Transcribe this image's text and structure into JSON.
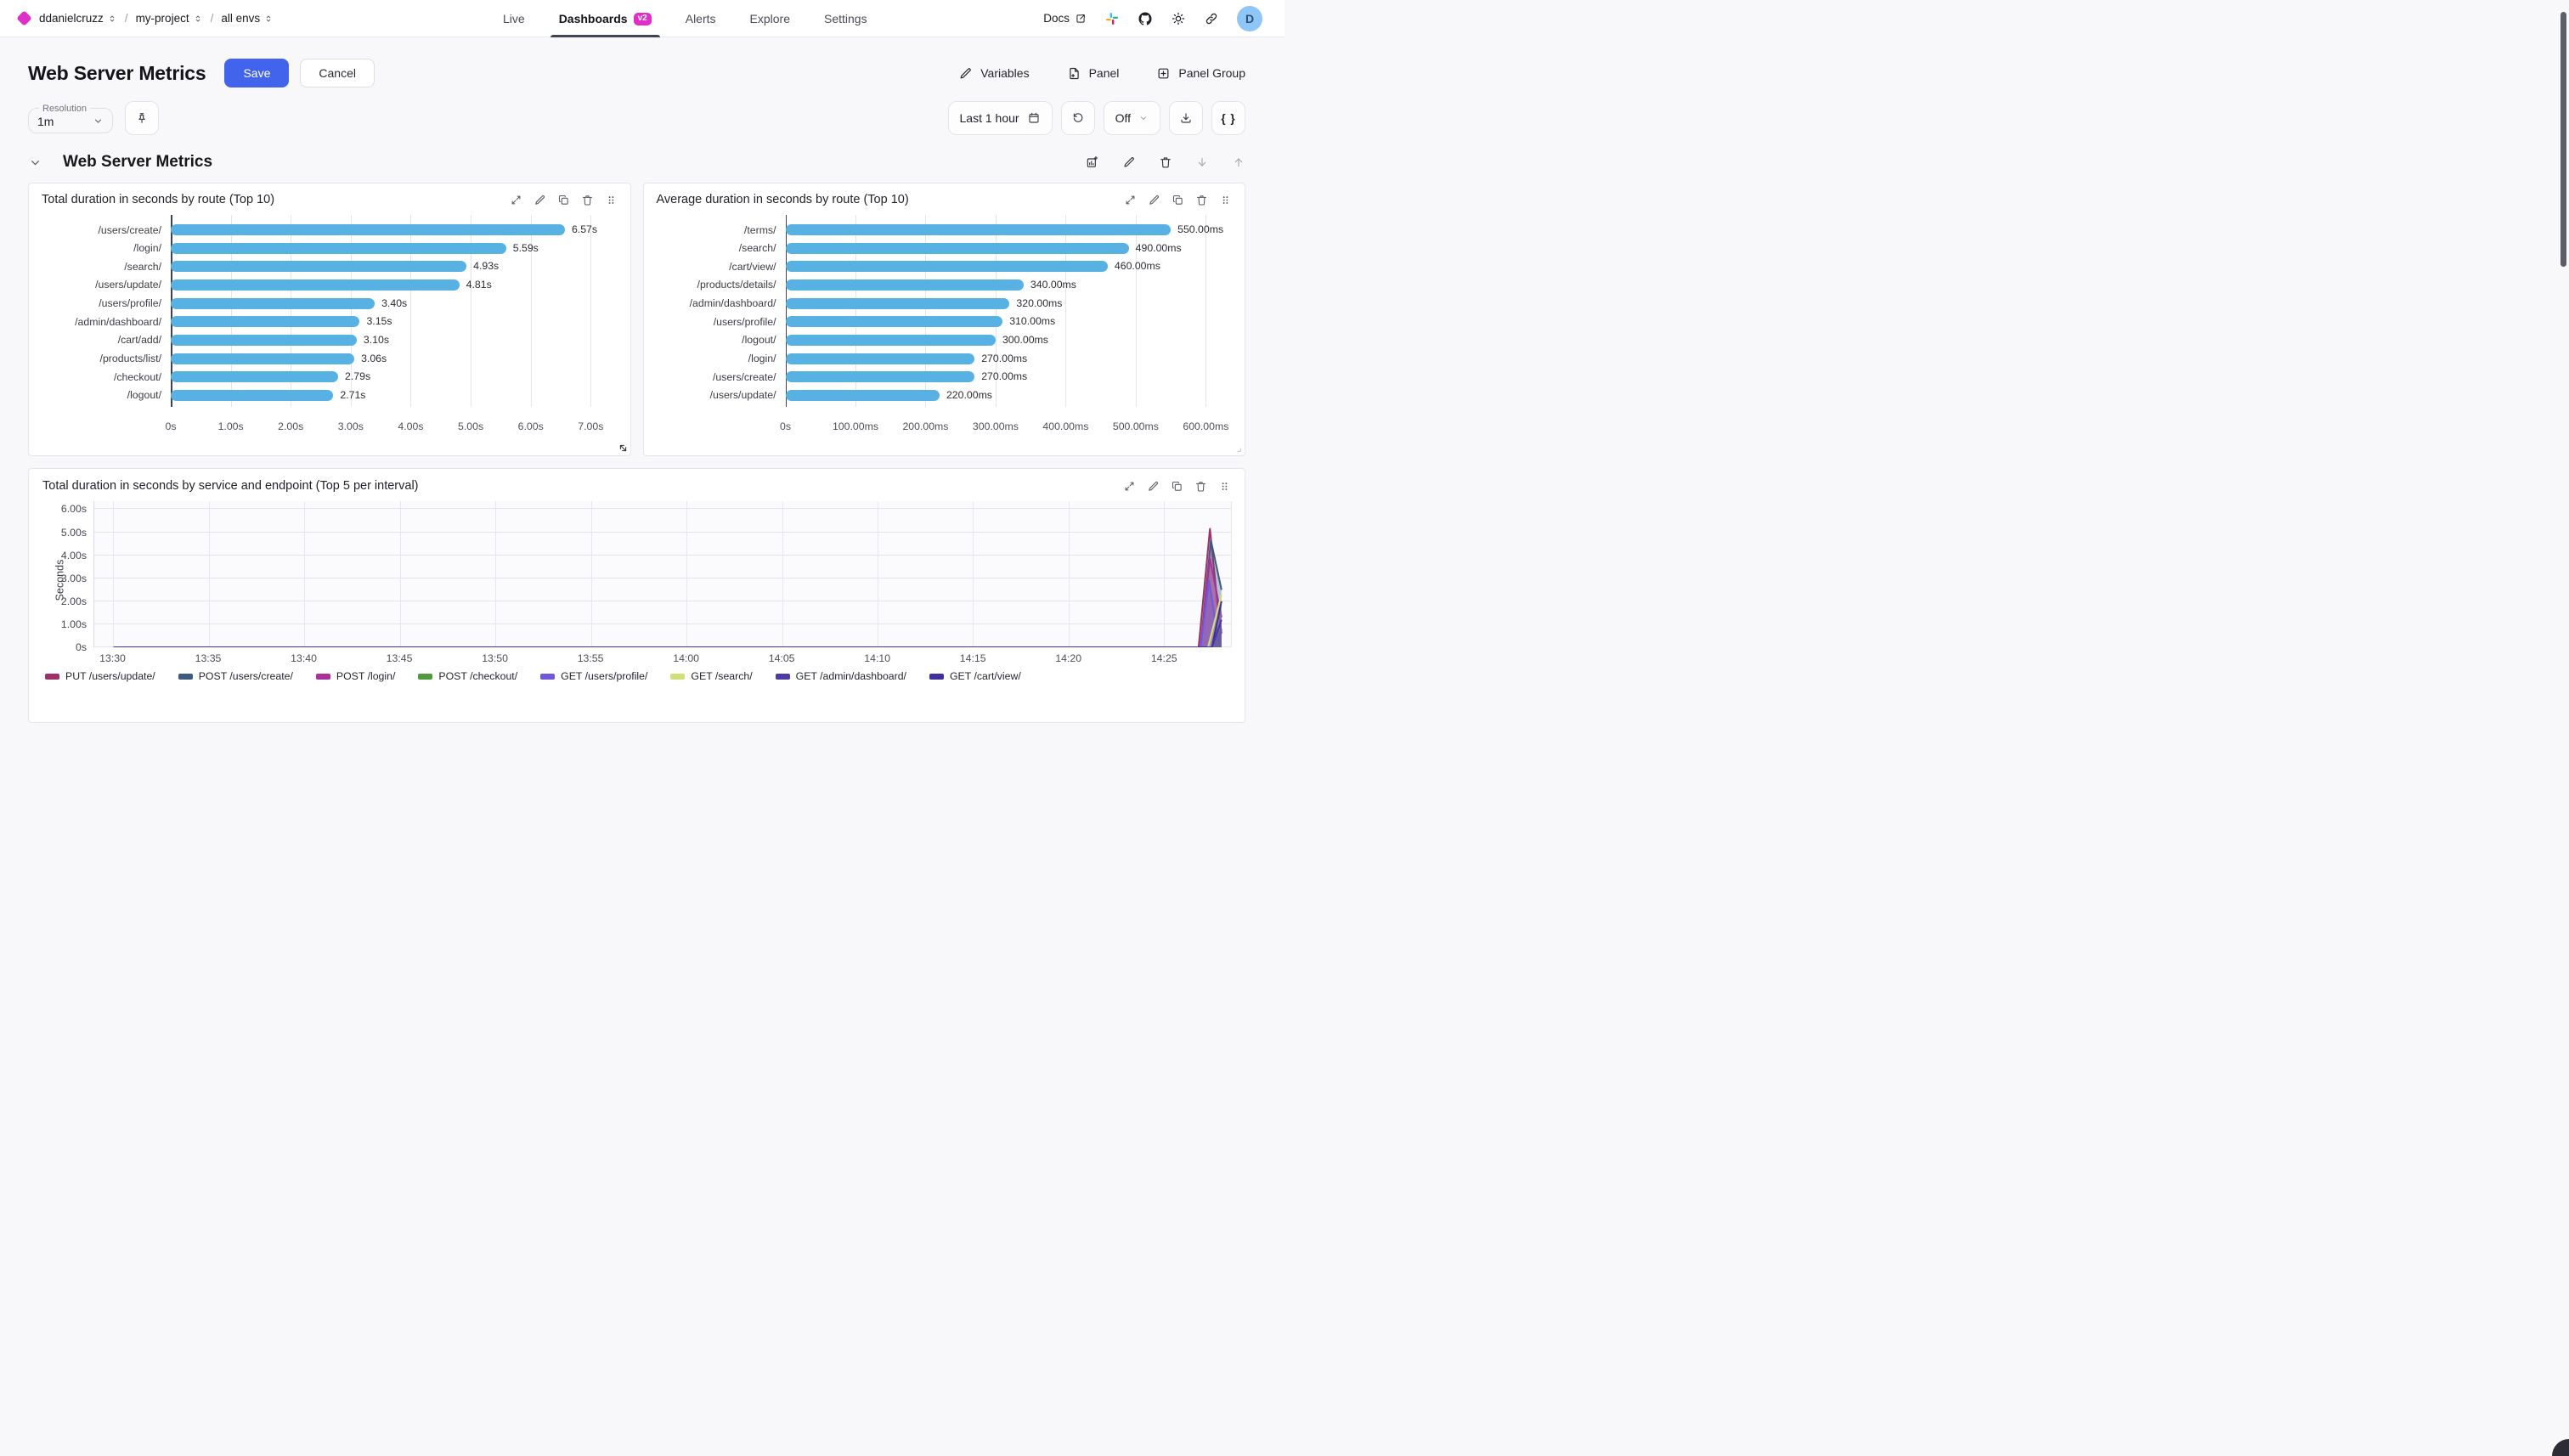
{
  "nav": {
    "breadcrumb": {
      "account": "ddanielcruzz",
      "separator": "/",
      "project": "my-project",
      "env": "all envs"
    },
    "tabs": [
      {
        "label": "Live",
        "active": false
      },
      {
        "label": "Dashboards",
        "active": true,
        "badge": "v2"
      },
      {
        "label": "Alerts",
        "active": false
      },
      {
        "label": "Explore",
        "active": false
      },
      {
        "label": "Settings",
        "active": false
      }
    ],
    "docs_label": "Docs",
    "avatar_initial": "D"
  },
  "header": {
    "title": "Web Server Metrics",
    "save_label": "Save",
    "cancel_label": "Cancel",
    "actions": [
      {
        "label": "Variables"
      },
      {
        "label": "Panel"
      },
      {
        "label": "Panel Group"
      }
    ]
  },
  "toolbar": {
    "resolution_label": "Resolution",
    "resolution_value": "1m",
    "time_range": "Last 1 hour",
    "refresh_value": "Off",
    "braces_label": "{ }"
  },
  "section": {
    "title": "Web Server Metrics"
  },
  "colors": {
    "accent_blue": "#4263eb",
    "brand_magenta": "#e02ec8",
    "bar_blue": "#57b2e3",
    "tab_underline": "#3d4557",
    "avatar_bg": "#8ec6f7"
  },
  "icons": [
    "diamond-logo",
    "chevron-updown",
    "external-link",
    "slack",
    "github",
    "sun",
    "link",
    "avatar",
    "pencil",
    "file-plus",
    "plus-square",
    "pin",
    "calendar",
    "refresh-ccw",
    "chevron-down",
    "download",
    "braces",
    "chart-plus",
    "trash",
    "arrow-down",
    "arrow-up",
    "expand",
    "copy",
    "grip-dots",
    "resize-handle",
    "corner-bracket"
  ],
  "chart_data": [
    {
      "type": "bar",
      "orientation": "horizontal",
      "title": "Total duration in seconds by route (Top 10)",
      "categories": [
        "/users/create/",
        "/login/",
        "/search/",
        "/users/update/",
        "/users/profile/",
        "/admin/dashboard/",
        "/cart/add/",
        "/products/list/",
        "/checkout/",
        "/logout/"
      ],
      "values": [
        6.57,
        5.59,
        4.93,
        4.81,
        3.4,
        3.15,
        3.1,
        3.06,
        2.79,
        2.71
      ],
      "value_labels": [
        "6.57s",
        "5.59s",
        "4.93s",
        "4.81s",
        "3.40s",
        "3.15s",
        "3.10s",
        "3.06s",
        "2.79s",
        "2.71s"
      ],
      "xticks": [
        "0s",
        "1.00s",
        "2.00s",
        "3.00s",
        "4.00s",
        "5.00s",
        "6.00s",
        "7.00s"
      ],
      "xtick_values": [
        0,
        1,
        2,
        3,
        4,
        5,
        6,
        7
      ],
      "axis_max": 7.3,
      "bar_color": "#57b2e3",
      "unit": "s"
    },
    {
      "type": "bar",
      "orientation": "horizontal",
      "title": "Average duration in seconds by route (Top 10)",
      "categories": [
        "/terms/",
        "/search/",
        "/cart/view/",
        "/products/details/",
        "/admin/dashboard/",
        "/users/profile/",
        "/logout/",
        "/login/",
        "/users/create/",
        "/users/update/"
      ],
      "values": [
        550,
        490,
        460,
        340,
        320,
        310,
        300,
        270,
        270,
        220
      ],
      "value_labels": [
        "550.00ms",
        "490.00ms",
        "460.00ms",
        "340.00ms",
        "320.00ms",
        "310.00ms",
        "300.00ms",
        "270.00ms",
        "270.00ms",
        "220.00ms"
      ],
      "xticks": [
        "0s",
        "100.00ms",
        "200.00ms",
        "300.00ms",
        "400.00ms",
        "500.00ms",
        "600.00ms"
      ],
      "xtick_values": [
        0,
        100,
        200,
        300,
        400,
        500,
        600
      ],
      "axis_max": 625,
      "bar_color": "#57b2e3",
      "unit": "ms"
    },
    {
      "type": "area",
      "title": "Total duration in seconds by service and endpoint (Top 5 per interval)",
      "ylabel": "Seconds",
      "yticks": [
        "0s",
        "1.00s",
        "2.00s",
        "3.00s",
        "4.00s",
        "5.00s",
        "6.00s"
      ],
      "ytick_values": [
        0,
        1,
        2,
        3,
        4,
        5,
        6
      ],
      "ymax": 6.35,
      "xticks": [
        "13:30",
        "13:35",
        "13:40",
        "13:45",
        "13:50",
        "13:55",
        "14:00",
        "14:05",
        "14:10",
        "14:15",
        "14:20",
        "14:25"
      ],
      "xtick_values": [
        0,
        5,
        10,
        15,
        20,
        25,
        30,
        35,
        40,
        45,
        50,
        55
      ],
      "x_offset": 1,
      "x_span": 59.5,
      "grid": true,
      "legend_position": "bottom",
      "series": [
        {
          "name": "PUT /users/update/",
          "color": "#9e3266",
          "points": [
            [
              0,
              0
            ],
            [
              56.8,
              0
            ],
            [
              57.4,
              5.15
            ],
            [
              57.8,
              1.9
            ],
            [
              58,
              0.6
            ]
          ]
        },
        {
          "name": "POST /users/create/",
          "color": "#3d5a80",
          "points": [
            [
              0,
              0
            ],
            [
              56.9,
              0
            ],
            [
              57.45,
              4.65
            ],
            [
              58,
              2.5
            ]
          ]
        },
        {
          "name": "POST /login/",
          "color": "#a83299",
          "points": [
            [
              0,
              0
            ],
            [
              56.9,
              0
            ],
            [
              57.4,
              3.85
            ],
            [
              58,
              1.3
            ]
          ]
        },
        {
          "name": "POST /checkout/",
          "color": "#4e9a3c",
          "points": [
            [
              0,
              0
            ],
            [
              58,
              0
            ]
          ]
        },
        {
          "name": "GET /users/profile/",
          "color": "#7257d9",
          "points": [
            [
              0,
              0
            ],
            [
              56.9,
              0
            ],
            [
              57.35,
              2.9
            ],
            [
              57.85,
              0.25
            ],
            [
              58,
              0.8
            ]
          ]
        },
        {
          "name": "GET /search/",
          "color": "#cfe077",
          "points": [
            [
              0,
              0
            ],
            [
              57.3,
              0
            ],
            [
              58,
              2.3
            ]
          ]
        },
        {
          "name": "GET /admin/dashboard/",
          "color": "#4d3ca6",
          "points": [
            [
              0,
              0
            ],
            [
              57.5,
              0
            ],
            [
              58,
              1.2
            ]
          ]
        },
        {
          "name": "GET /cart/view/",
          "color": "#40309d",
          "points": [
            [
              0,
              0
            ],
            [
              57.5,
              0
            ],
            [
              58,
              2.0
            ]
          ]
        }
      ]
    }
  ]
}
